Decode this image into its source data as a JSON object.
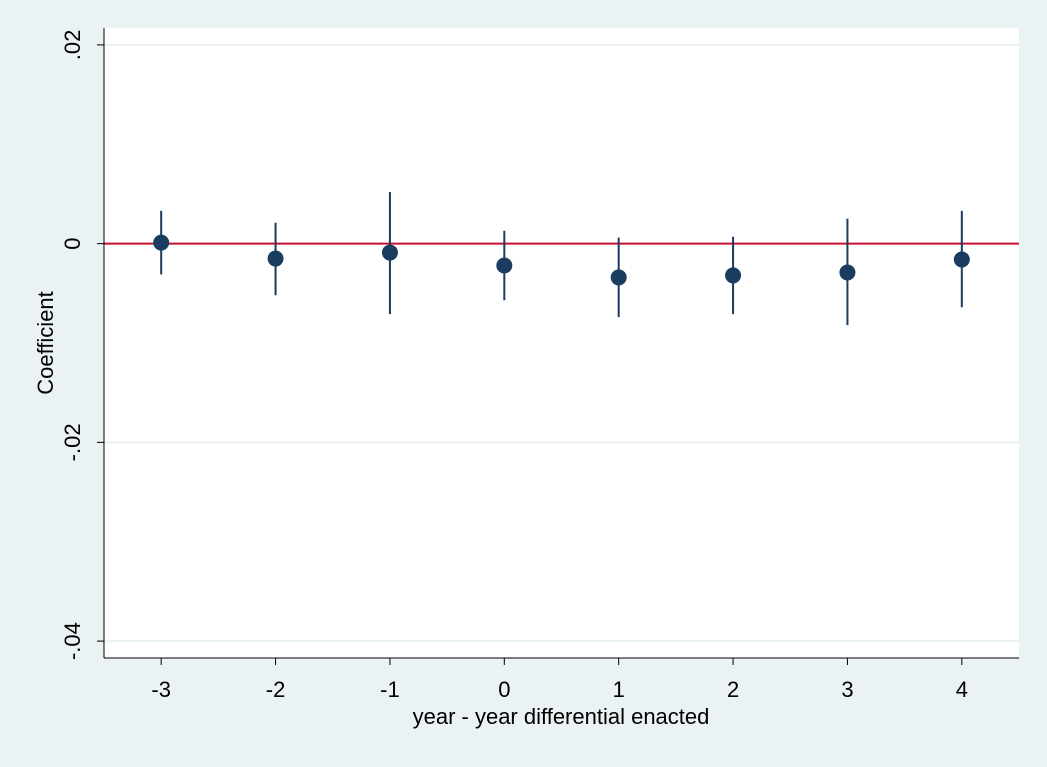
{
  "chart_data": {
    "type": "scatter",
    "title": "",
    "xlabel": "year - year differential enacted",
    "ylabel": "Coefficient",
    "xlim": [
      -3.5,
      4.5
    ],
    "ylim": [
      -0.0417,
      0.0217
    ],
    "x_ticks": [
      {
        "value": -3,
        "label": "-3"
      },
      {
        "value": -2,
        "label": "-2"
      },
      {
        "value": -1,
        "label": "-1"
      },
      {
        "value": 0,
        "label": "0"
      },
      {
        "value": 1,
        "label": "1"
      },
      {
        "value": 2,
        "label": "2"
      },
      {
        "value": 3,
        "label": "3"
      },
      {
        "value": 4,
        "label": "4"
      }
    ],
    "y_ticks": [
      {
        "value": 0.02,
        "label": ".02"
      },
      {
        "value": 0,
        "label": "0"
      },
      {
        "value": -0.02,
        "label": "-.02"
      },
      {
        "value": -0.04,
        "label": "-.04"
      }
    ],
    "grid": "horizontal",
    "reference_line": {
      "y": 0,
      "color": "#c8102e"
    },
    "colors": {
      "marker": "#1a3c5e",
      "ci": "#1a3c5e",
      "background": "#eaf2f3",
      "plot_background": "#ffffff",
      "gridline": "#eaf2f3"
    },
    "series": [
      {
        "points": [
          {
            "x": -3,
            "y": 0.0001,
            "ci_low": -0.0031,
            "ci_high": 0.0033
          },
          {
            "x": -2,
            "y": -0.0015,
            "ci_low": -0.0052,
            "ci_high": 0.0021
          },
          {
            "x": -1,
            "y": -0.0009,
            "ci_low": -0.0071,
            "ci_high": 0.0052
          },
          {
            "x": 0,
            "y": -0.0022,
            "ci_low": -0.0057,
            "ci_high": 0.0013
          },
          {
            "x": 1,
            "y": -0.0034,
            "ci_low": -0.0074,
            "ci_high": 0.0006
          },
          {
            "x": 2,
            "y": -0.0032,
            "ci_low": -0.0071,
            "ci_high": 0.0007
          },
          {
            "x": 3,
            "y": -0.0029,
            "ci_low": -0.0082,
            "ci_high": 0.0025
          },
          {
            "x": 4,
            "y": -0.0016,
            "ci_low": -0.0064,
            "ci_high": 0.0033
          }
        ]
      }
    ]
  }
}
